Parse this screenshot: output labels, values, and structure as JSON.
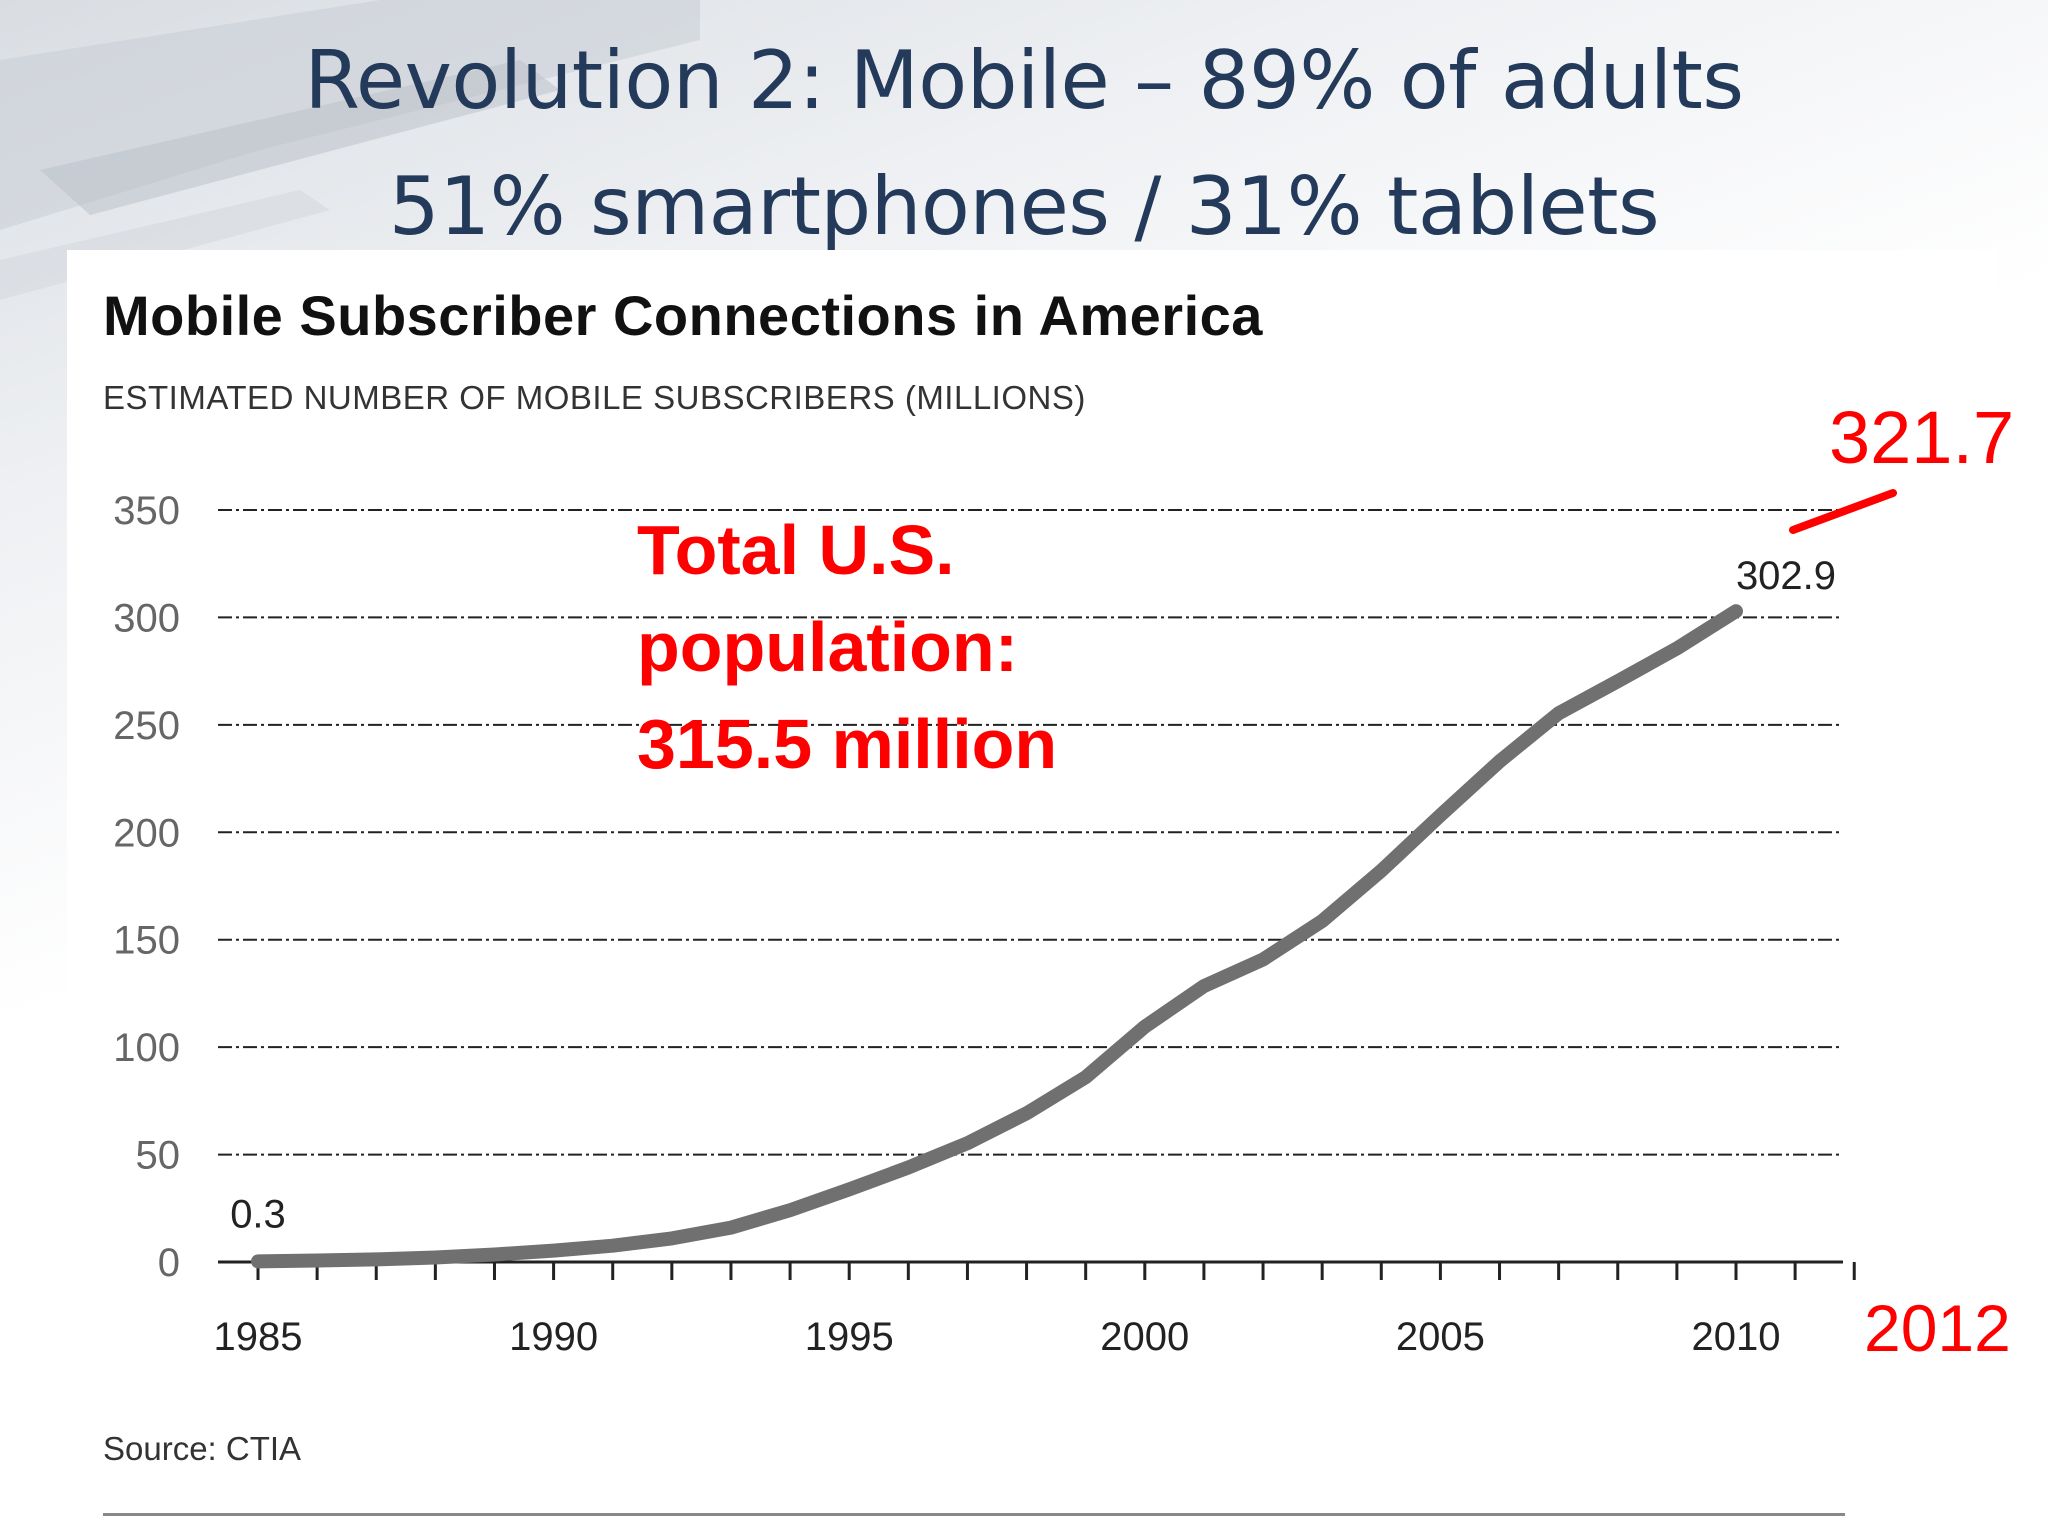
{
  "slide": {
    "title_line1": "Revolution 2: Mobile – 89% of adults",
    "title_line2": "51% smartphones / 31% tablets"
  },
  "chart_data": {
    "type": "line",
    "title": "Mobile Subscriber Connections in America",
    "subtitle": "ESTIMATED NUMBER OF MOBILE SUBSCRIBERS (MILLIONS)",
    "source": "Source: CTIA",
    "xlabel": "",
    "ylabel": "",
    "x_ticks": [
      1985,
      1990,
      1995,
      2000,
      2005,
      2010
    ],
    "y_ticks": [
      0,
      50,
      100,
      150,
      200,
      250,
      300,
      350
    ],
    "xlim": [
      1985,
      2012
    ],
    "ylim": [
      0,
      350
    ],
    "grid": true,
    "series": [
      {
        "color": "#707070",
        "x": [
          1985,
          1986,
          1987,
          1988,
          1989,
          1990,
          1991,
          1992,
          1993,
          1994,
          1995,
          1996,
          1997,
          1998,
          1999,
          2000,
          2001,
          2002,
          2003,
          2004,
          2005,
          2006,
          2007,
          2008,
          2009,
          2010
        ],
        "values": [
          0.3,
          0.7,
          1.2,
          2.1,
          3.5,
          5.3,
          7.6,
          11.0,
          16.0,
          24.1,
          33.8,
          44.0,
          55.3,
          69.2,
          86.0,
          109.5,
          128.4,
          140.8,
          158.7,
          182.1,
          207.9,
          233.0,
          255.4,
          270.3,
          285.6,
          302.9
        ]
      }
    ],
    "data_labels": [
      {
        "x": 1985,
        "y": 0.3,
        "text": "0.3"
      },
      {
        "x": 2010,
        "y": 302.9,
        "text": "302.9"
      }
    ],
    "annotations": {
      "population_lines": [
        "Total U.S.",
        "population:",
        "315.5 million"
      ],
      "extra_value": "321.7",
      "extra_year": "2012",
      "extra_point": {
        "x": 2012,
        "y": 321.7
      },
      "accent_color": "#ff0000"
    }
  }
}
